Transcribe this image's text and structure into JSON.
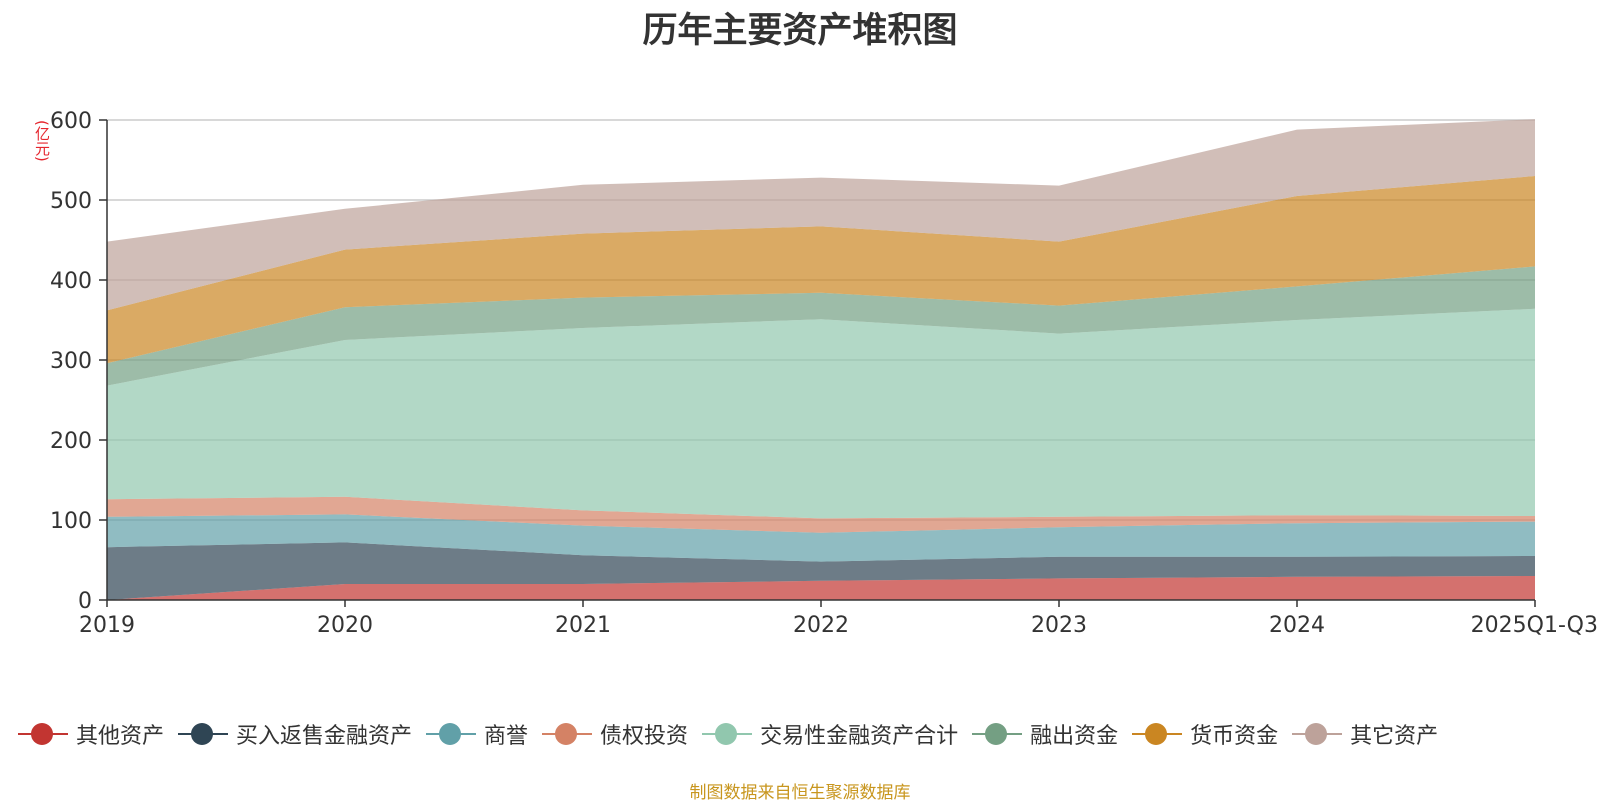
{
  "chart_data": {
    "type": "area",
    "stacked": true,
    "title": "历年主要资产堆积图",
    "unit_label": "(亿元)",
    "categories": [
      "2019",
      "2020",
      "2021",
      "2022",
      "2023",
      "2024",
      "2025Q1-Q3"
    ],
    "ylim": [
      0,
      600
    ],
    "yticks": [
      0,
      100,
      200,
      300,
      400,
      500,
      600
    ],
    "grid": true,
    "legend_position": "bottom",
    "series": [
      {
        "name": "其他资产",
        "color": "#c23531",
        "values": [
          0,
          20,
          20,
          24,
          27,
          29,
          30
        ]
      },
      {
        "name": "买入返售金融资产",
        "color": "#2f4554",
        "values": [
          66,
          52,
          36,
          24,
          27,
          25,
          25
        ]
      },
      {
        "name": "商誉",
        "color": "#61a0a8",
        "values": [
          38,
          35,
          37,
          36,
          37,
          42,
          43
        ]
      },
      {
        "name": "债权投资",
        "color": "#d48265",
        "values": [
          22,
          22,
          19,
          18,
          13,
          10,
          7
        ]
      },
      {
        "name": "交易性金融资产合计",
        "color": "#91c7ae",
        "values": [
          142,
          196,
          228,
          249,
          229,
          244,
          259
        ]
      },
      {
        "name": "融出资金",
        "color": "#749f83",
        "values": [
          28,
          41,
          38,
          33,
          35,
          42,
          53
        ]
      },
      {
        "name": "货币资金",
        "color": "#ca8622",
        "values": [
          66,
          72,
          80,
          83,
          80,
          113,
          113
        ]
      },
      {
        "name": "其它资产",
        "color": "#bda29a",
        "values": [
          86,
          51,
          61,
          61,
          70,
          83,
          71
        ]
      }
    ]
  },
  "source_text": "制图数据来自恒生聚源数据库"
}
